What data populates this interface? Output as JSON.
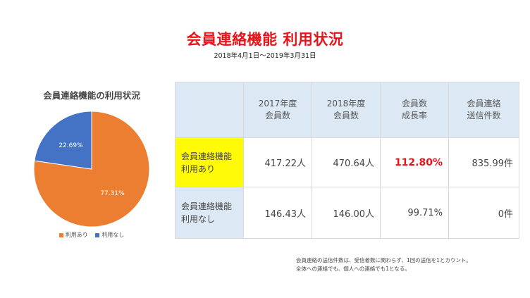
{
  "header": {
    "title": "会員連絡機能 利用状況",
    "subtitle": "2018年4月1日〜2019年3月31日"
  },
  "chart_data": {
    "type": "pie",
    "title": "会員連絡機能の利用状況",
    "slices": [
      {
        "label": "利用あり",
        "value": 77.31,
        "display": "77.31%",
        "color": "#ec7e31"
      },
      {
        "label": "利用なし",
        "value": 22.69,
        "display": "22.69%",
        "color": "#4472c4"
      }
    ],
    "legend_position": "bottom"
  },
  "table": {
    "headers": [
      {
        "line1": "",
        "line2": ""
      },
      {
        "line1": "2017年度",
        "line2": "会員数"
      },
      {
        "line1": "2018年度",
        "line2": "会員数"
      },
      {
        "line1": "会員数",
        "line2": "成長率"
      },
      {
        "line1": "会員連絡",
        "line2": "送信件数"
      }
    ],
    "rows": [
      {
        "label1": "会員連絡機能",
        "label2": "利用あり",
        "members_2017": "417.22人",
        "members_2018": "470.64人",
        "growth": "112.80%",
        "messages": "835.99件"
      },
      {
        "label1": "会員連絡機能",
        "label2": "利用なし",
        "members_2017": "146.43人",
        "members_2018": "146.00人",
        "growth": "99.71%",
        "messages": "0件"
      }
    ],
    "highlight_color": "#fffa05",
    "emphasis_color": "#e8141a"
  },
  "notes": {
    "line1": "会員連絡の送信件数は、受信者数に関わらず、1回の送信を1とカウント。",
    "line2": "全体への連絡でも、個人への連絡でも1となる。"
  }
}
